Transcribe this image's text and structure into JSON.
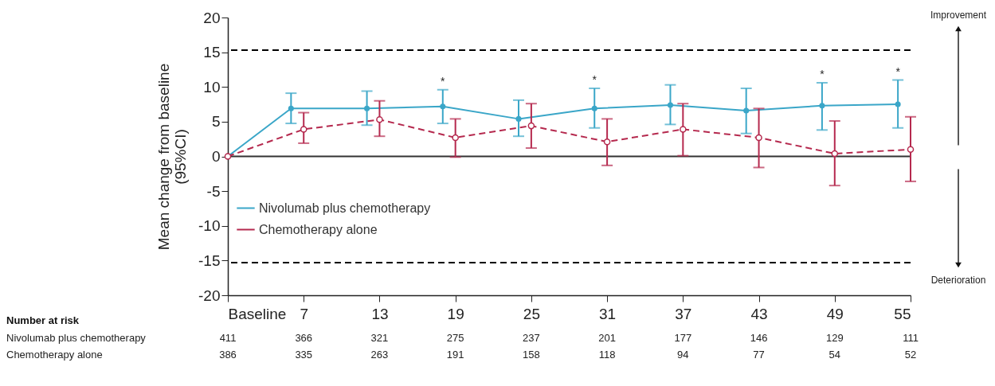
{
  "chart_data": {
    "type": "line",
    "ylabel": "Mean change from baseline\n(95%CI)",
    "xlim": [
      1,
      55
    ],
    "xticks": [
      {
        "value": 1,
        "label": "Baseline"
      },
      7,
      13,
      19,
      25,
      31,
      37,
      43,
      49,
      55
    ],
    "ylim": [
      -20,
      20
    ],
    "yticks": [
      -20,
      -15,
      -10,
      -5,
      0,
      5,
      10,
      15,
      20
    ],
    "marker": "circle",
    "grid": false,
    "legend": "bottom left",
    "series": [
      {
        "name": "Nivolumab plus chemotherapy",
        "color": "#3aa6c8",
        "line_style": "solid",
        "x": [
          1,
          6,
          12,
          18,
          24,
          30,
          36,
          42,
          48,
          54
        ],
        "values": [
          0,
          6.9,
          6.9,
          7.2,
          5.4,
          6.9,
          7.4,
          6.6,
          7.3,
          7.5
        ],
        "errors": [
          null,
          [
            4.75,
            9.1
          ],
          [
            4.5,
            9.4
          ],
          [
            4.75,
            9.6
          ],
          [
            2.9,
            8.1
          ],
          [
            4.1,
            9.8
          ],
          [
            4.6,
            10.3
          ],
          [
            3.3,
            9.8
          ],
          [
            3.8,
            10.6
          ],
          [
            4.1,
            11.0
          ]
        ]
      },
      {
        "name": "Chemotherapy alone",
        "color": "#b5294e",
        "line_style": "dashed",
        "x": [
          1,
          7,
          13,
          19,
          25,
          31,
          37,
          43,
          49,
          55
        ],
        "values": [
          0,
          3.9,
          5.3,
          2.7,
          4.4,
          2.1,
          3.9,
          2.7,
          0.4,
          1.0
        ],
        "errors": [
          null,
          [
            1.9,
            6.3
          ],
          [
            2.9,
            8.0
          ],
          [
            -0.1,
            5.4
          ],
          [
            1.2,
            7.6
          ],
          [
            -1.3,
            5.4
          ],
          [
            0.1,
            7.6
          ],
          [
            -1.6,
            6.9
          ],
          [
            -4.2,
            5.1
          ],
          [
            -3.6,
            5.7
          ]
        ]
      }
    ],
    "ref_lines": [
      {
        "axis": "y",
        "value": 15.3,
        "line_style": "dashed",
        "color": "#000000"
      },
      {
        "axis": "y",
        "value": -15.3,
        "line_style": "dashed",
        "color": "#000000"
      },
      {
        "axis": "y",
        "value": 0,
        "line_style": "solid",
        "color": "#333333"
      }
    ],
    "annotations": [
      "Improvement",
      "Deterioration",
      "Number at risk",
      "Nivolumab plus chemotherapy",
      "411",
      "366",
      "321",
      "275",
      "237",
      "201",
      "177",
      "146",
      "129",
      "111",
      "Chemotherapy alone",
      "386",
      "335",
      "263",
      "191",
      "158",
      "118",
      "94",
      "77",
      "54",
      "52",
      {
        "text": "*",
        "x": 18,
        "y": 9.6
      },
      {
        "text": "*",
        "x": 30,
        "y": 9.8
      },
      {
        "text": "*",
        "x": 48,
        "y": 10.6
      },
      {
        "text": "*",
        "x": 54,
        "y": 11.0
      }
    ]
  }
}
